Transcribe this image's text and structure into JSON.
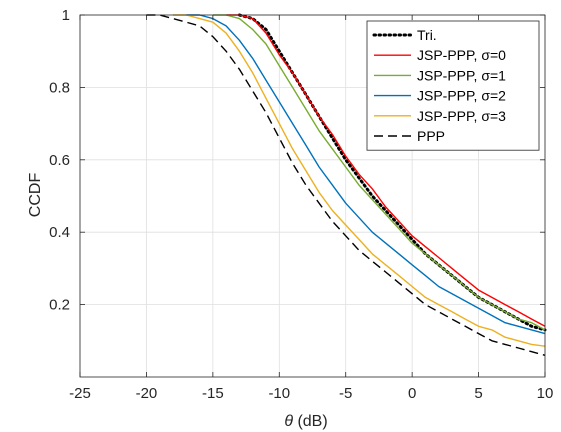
{
  "chart_data": {
    "type": "line",
    "xlabel": "θ (dB)",
    "ylabel": "CCDF",
    "xlim": [
      -25,
      10
    ],
    "ylim": [
      0,
      1
    ],
    "xticks": [
      "-25",
      "-20",
      "-15",
      "-10",
      "-5",
      "0",
      "5",
      "10"
    ],
    "yticks": [
      "0.2",
      "0.4",
      "0.6",
      "0.8",
      "1"
    ],
    "grid": true,
    "legend_position": "top-right",
    "series": [
      {
        "name": "Tri.",
        "color": "#000000",
        "style": "dotted",
        "x": [
          -13,
          -12,
          -11,
          -10,
          -9,
          -8,
          -7,
          -6,
          -5,
          -4,
          -3,
          -2,
          -1,
          0,
          1,
          2,
          3,
          4,
          5,
          6,
          7,
          8,
          9,
          10
        ],
        "y": [
          1.0,
          0.99,
          0.96,
          0.9,
          0.84,
          0.78,
          0.72,
          0.66,
          0.6,
          0.55,
          0.5,
          0.46,
          0.42,
          0.38,
          0.34,
          0.31,
          0.28,
          0.25,
          0.22,
          0.2,
          0.18,
          0.16,
          0.14,
          0.13
        ]
      },
      {
        "name": "JSP-PPP, σ=0",
        "color": "#ff0000",
        "style": "solid",
        "x": [
          -14,
          -13,
          -12,
          -11,
          -10,
          -9,
          -8,
          -7,
          -6,
          -5,
          -4,
          -3,
          -2,
          -1,
          0,
          1,
          2,
          3,
          4,
          5,
          6,
          7,
          8,
          9,
          10
        ],
        "y": [
          1.0,
          1.0,
          0.99,
          0.95,
          0.89,
          0.84,
          0.78,
          0.72,
          0.67,
          0.61,
          0.56,
          0.52,
          0.47,
          0.43,
          0.39,
          0.36,
          0.33,
          0.3,
          0.27,
          0.24,
          0.22,
          0.2,
          0.18,
          0.16,
          0.14
        ]
      },
      {
        "name": "JSP-PPP, σ=1",
        "color": "#77ac30",
        "style": "solid",
        "x": [
          -15,
          -14,
          -13,
          -12,
          -11,
          -10,
          -9,
          -8,
          -7,
          -6,
          -5,
          -4,
          -3,
          -2,
          -1,
          0,
          1,
          2,
          3,
          4,
          5,
          6,
          7,
          8,
          9,
          10
        ],
        "y": [
          1.0,
          1.0,
          0.99,
          0.96,
          0.92,
          0.86,
          0.8,
          0.74,
          0.68,
          0.63,
          0.58,
          0.53,
          0.49,
          0.45,
          0.41,
          0.37,
          0.34,
          0.31,
          0.28,
          0.25,
          0.22,
          0.2,
          0.18,
          0.16,
          0.15,
          0.13
        ]
      },
      {
        "name": "JSP-PPP, σ=2",
        "color": "#0072bd",
        "style": "solid",
        "x": [
          -17,
          -16,
          -15,
          -14,
          -13,
          -12,
          -11,
          -10,
          -9,
          -8,
          -7,
          -6,
          -5,
          -4,
          -3,
          -2,
          -1,
          0,
          1,
          2,
          3,
          4,
          5,
          6,
          7,
          8,
          9,
          10
        ],
        "y": [
          1.0,
          1.0,
          0.99,
          0.97,
          0.93,
          0.88,
          0.82,
          0.76,
          0.7,
          0.64,
          0.58,
          0.53,
          0.48,
          0.44,
          0.4,
          0.37,
          0.34,
          0.31,
          0.28,
          0.25,
          0.23,
          0.21,
          0.19,
          0.17,
          0.15,
          0.14,
          0.13,
          0.12
        ]
      },
      {
        "name": "JSP-PPP, σ=3",
        "color": "#edb120",
        "style": "solid",
        "x": [
          -18,
          -17,
          -16,
          -15,
          -14,
          -13,
          -12,
          -11,
          -10,
          -9,
          -8,
          -7,
          -6,
          -5,
          -4,
          -3,
          -2,
          -1,
          0,
          1,
          2,
          3,
          4,
          5,
          6,
          7,
          8,
          9,
          10
        ],
        "y": [
          1.0,
          1.0,
          0.99,
          0.98,
          0.95,
          0.9,
          0.84,
          0.77,
          0.7,
          0.63,
          0.57,
          0.51,
          0.46,
          0.42,
          0.38,
          0.34,
          0.31,
          0.28,
          0.25,
          0.22,
          0.2,
          0.18,
          0.16,
          0.14,
          0.13,
          0.11,
          0.1,
          0.09,
          0.085
        ]
      },
      {
        "name": "PPP",
        "color": "#000000",
        "style": "dashed",
        "x": [
          -20,
          -19,
          -18,
          -17,
          -16,
          -15,
          -14,
          -13,
          -12,
          -11,
          -10,
          -9,
          -8,
          -7,
          -6,
          -5,
          -4,
          -3,
          -2,
          -1,
          0,
          1,
          2,
          3,
          4,
          5,
          6,
          7,
          8,
          9,
          10
        ],
        "y": [
          1.0,
          1.0,
          0.99,
          0.98,
          0.97,
          0.94,
          0.9,
          0.85,
          0.79,
          0.73,
          0.66,
          0.59,
          0.53,
          0.48,
          0.43,
          0.39,
          0.35,
          0.32,
          0.29,
          0.26,
          0.23,
          0.2,
          0.18,
          0.16,
          0.14,
          0.12,
          0.1,
          0.09,
          0.08,
          0.07,
          0.06
        ]
      }
    ]
  }
}
